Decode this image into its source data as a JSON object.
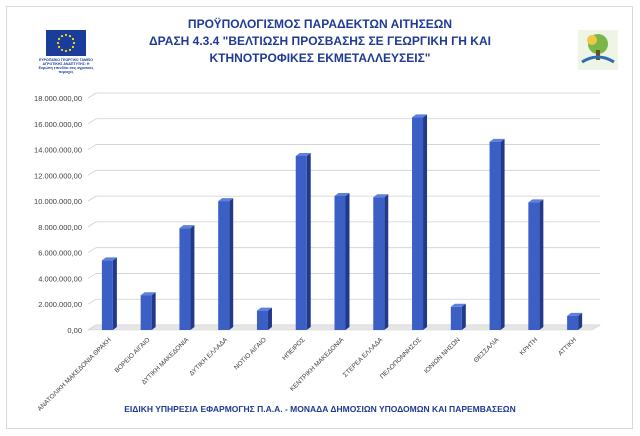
{
  "header": {
    "title_line1": "ΠΡΟΫΠΟΛΟΓΙΣΜΟΣ ΠΑΡΑΔΕΚΤΩΝ ΑΙΤΗΣΕΩΝ",
    "title_line2": "ΔΡΑΣΗ 4.3.4 \"ΒΕΛΤΙΩΣΗ ΠΡΟΣΒΑΣΗΣ ΣΕ ΓΕΩΡΓΙΚΗ ΓΗ ΚΑΙ ΚΤΗΝΟΤΡΟΦΙΚΕΣ ΕΚΜΕΤΑΛΛΕΥΣΕΙΣ\"",
    "eu_caption": "ΕΥΡΩΠΑΪΚΟ ΓΕΩΡΓΙΚΟ ΤΑΜΕΙΟ ΑΓΡΟΤΙΚΗΣ ΑΝΑΠΤΥΞΗΣ: Η Ευρώπη επενδύει στις αγροτικές περιοχές"
  },
  "footer": {
    "text": "ΕΙΔΙΚΗ ΥΠΗΡΕΣΙΑ ΕΦΑΡΜΟΓΗΣ Π.Α.Α. - ΜΟΝΑΔΑ ΔΗΜΟΣΙΩΝ ΥΠΟΔΟΜΩΝ ΚΑΙ ΠΑΡΕΜΒΑΣΕΩΝ"
  },
  "logos": {
    "eu_flag_color": "#1a3c9b",
    "star_color": "#ffdd00",
    "corner_logo_colors": [
      "#7ab648",
      "#f2c744",
      "#2e6db4"
    ]
  },
  "chart_data": {
    "type": "bar",
    "style": "3d",
    "bar_color": "#3b5fc4",
    "grid": true,
    "ylim": [
      0,
      18000000
    ],
    "yticks": [
      "0,00",
      "2.000.000,00",
      "4.000.000,00",
      "6.000.000,00",
      "8.000.000,00",
      "10.000.000,00",
      "12.000.000,00",
      "14.000.000,00",
      "16.000.000,00",
      "18.000.000,00"
    ],
    "ytick_values": [
      0,
      2000000,
      4000000,
      6000000,
      8000000,
      10000000,
      12000000,
      14000000,
      16000000,
      18000000
    ],
    "categories": [
      "ΑΝΑΤΟΛΙΚΗ ΜΑΚΕΔΟΝΙΑ ΘΡΑΚΗ",
      "ΒΟΡΕΙΟ ΑΙΓΑΙΟ",
      "ΔΥΤΙΚΗ ΜΑΚΕΔΟΝΙΑ",
      "ΔΥΤΙΚΗ ΕΛΛΑΔΑ",
      "ΝΟΤΙΟ ΑΙΓΑΙΟ",
      "ΗΠΕΙΡΟΣ",
      "ΚΕΝΤΡΙΚΗ ΜΑΚΕΔΟΝΙΑ",
      "ΣΤΕΡΕΑ ΕΛΛΑΔΑ",
      "ΠΕΛΟΠΟΝΝΗΣΟΣ",
      "ΙΟΝΙΩΝ ΝΗΣΩΝ",
      "ΘΕΣΣΑΛΙΑ",
      "ΚΡΗΤΗ",
      "ΑΤΤΙΚΗ"
    ],
    "values": [
      5400000,
      2700000,
      7900000,
      10000000,
      1500000,
      13500000,
      10400000,
      10300000,
      16500000,
      1800000,
      14600000,
      9900000,
      1100000
    ]
  }
}
